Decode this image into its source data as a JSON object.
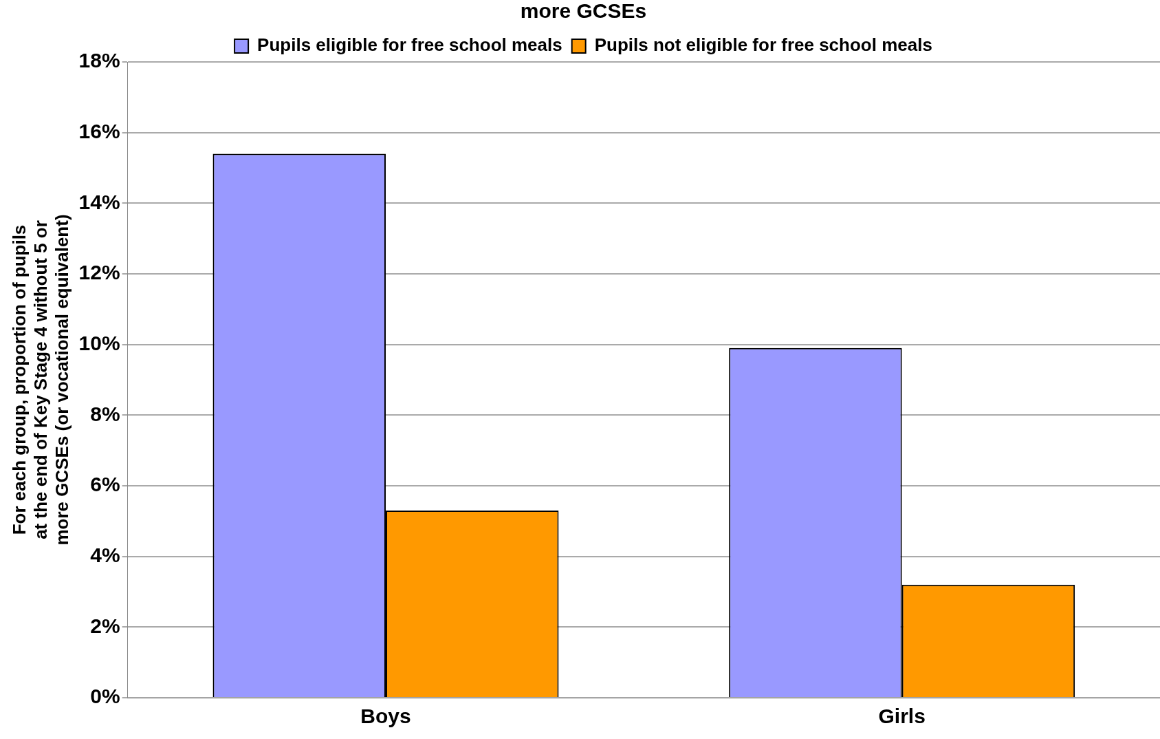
{
  "chart_data": {
    "type": "bar",
    "title": "more GCSEs",
    "ylabel": "For each group, proportion of pupils at the end of Key Stage 4 without 5 or more GCSEs (or vocational equivalent)",
    "categories": [
      "Boys",
      "Girls"
    ],
    "series": [
      {
        "name": "Pupils eligible for free school meals",
        "color": "#9999ff",
        "values": [
          15.4,
          9.9
        ]
      },
      {
        "name": "Pupils not eligible for free school meals",
        "color": "#ff9900",
        "values": [
          5.3,
          3.2
        ]
      }
    ],
    "ylim": [
      0,
      18
    ],
    "yticks": [
      {
        "value": 0,
        "label": "0%"
      },
      {
        "value": 2,
        "label": "2%"
      },
      {
        "value": 4,
        "label": "4%"
      },
      {
        "value": 6,
        "label": "6%"
      },
      {
        "value": 8,
        "label": "8%"
      },
      {
        "value": 10,
        "label": "10%"
      },
      {
        "value": 12,
        "label": "12%"
      },
      {
        "value": 14,
        "label": "14%"
      },
      {
        "value": 16,
        "label": "16%"
      },
      {
        "value": 18,
        "label": "18%"
      }
    ],
    "grid": "y",
    "legend": "top"
  }
}
